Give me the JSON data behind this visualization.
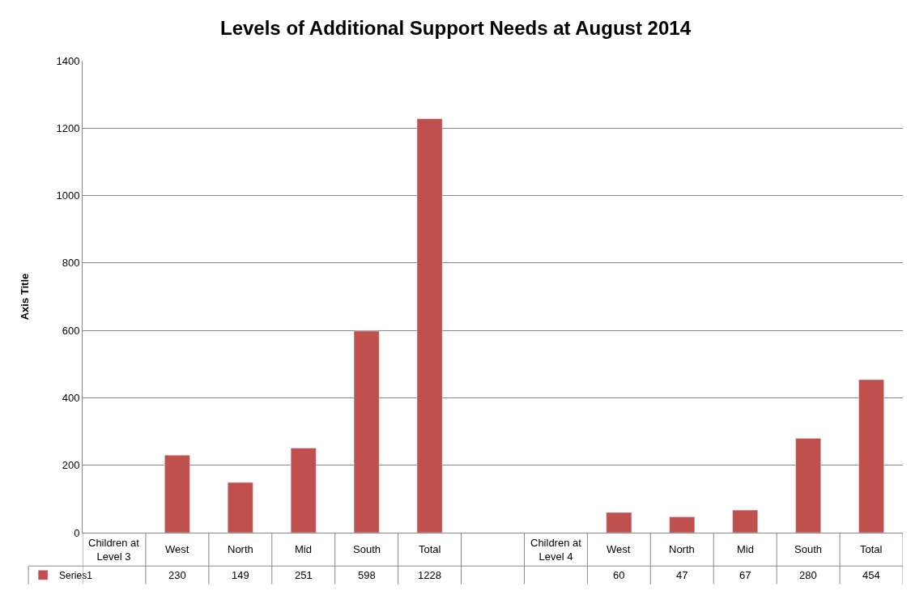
{
  "chart_data": {
    "type": "bar",
    "title": "Levels of Additional Support Needs at August 2014",
    "ylabel": "Axis Title",
    "categories": [
      "Children at Level 3",
      "West",
      "North",
      "Mid",
      "South",
      "Total",
      null,
      "Children at Level 4",
      "West",
      "North",
      "Mid",
      "South",
      "Total"
    ],
    "series": [
      {
        "name": "Series1",
        "color": "#c0504d",
        "values": [
          null,
          230,
          149,
          251,
          598,
          1228,
          null,
          null,
          60,
          47,
          67,
          280,
          454
        ]
      }
    ],
    "ylim": [
      0,
      1400
    ],
    "yticks": [
      0,
      200,
      400,
      600,
      800,
      1000,
      1200,
      1400
    ],
    "grid": "y",
    "data_labels": true,
    "legend": "bottom left"
  }
}
